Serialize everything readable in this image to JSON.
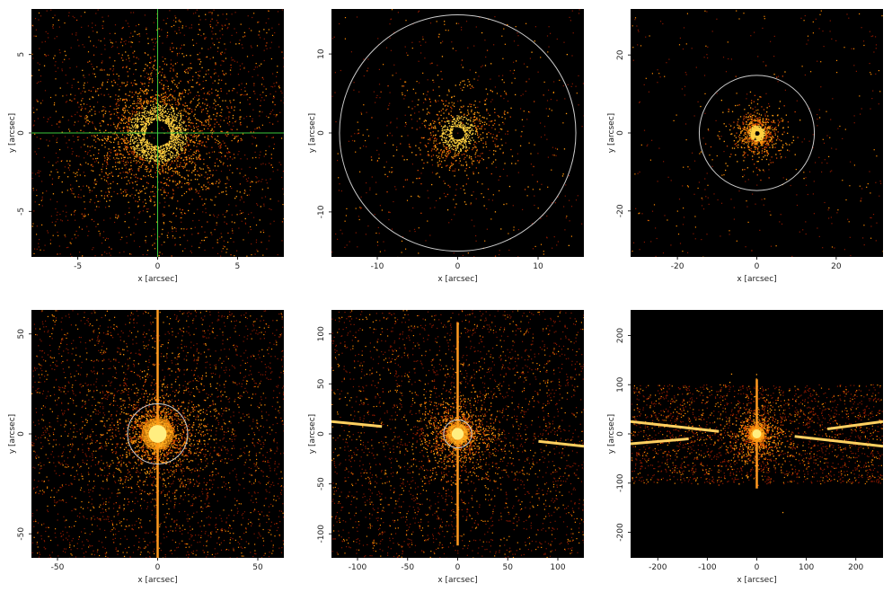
{
  "chart_data": [
    {
      "type": "image",
      "xlabel": "x [arcsec]",
      "ylabel": "y [arcsec]",
      "xlim": [
        -7.9,
        7.9
      ],
      "ylim": [
        -7.9,
        7.9
      ],
      "xticks": [
        -5,
        0,
        5
      ],
      "yticks": [
        -5,
        0,
        5
      ],
      "crosshair": true,
      "crosshair_color": "#3cc83c"
    },
    {
      "type": "image",
      "xlabel": "x [arcsec]",
      "ylabel": "y [arcsec]",
      "xlim": [
        -15.7,
        15.7
      ],
      "ylim": [
        -15.7,
        15.7
      ],
      "xticks": [
        -10,
        0,
        10
      ],
      "yticks": [
        -10,
        0,
        10
      ],
      "circle_radius": 14.7,
      "circle_color": "#cccccc"
    },
    {
      "type": "image",
      "xlabel": "x [arcsec]",
      "ylabel": "y [arcsec]",
      "xlim": [
        -31.8,
        31.8
      ],
      "ylim": [
        -31.8,
        31.8
      ],
      "xticks": [
        -20,
        0,
        20
      ],
      "yticks": [
        -20,
        0,
        20
      ],
      "circle_radius": 14.5,
      "circle_color": "#cccccc"
    },
    {
      "type": "image",
      "xlabel": "x [arcsec]",
      "ylabel": "y [arcsec]",
      "xlim": [
        -63,
        63
      ],
      "ylim": [
        -62,
        62
      ],
      "xticks": [
        -50,
        0,
        50
      ],
      "yticks": [
        -50,
        0,
        50
      ],
      "circle_radius": 15,
      "circle_color": "#cccccc"
    },
    {
      "type": "image",
      "xlabel": "x [arcsec]",
      "ylabel": "y [arcsec]",
      "xlim": [
        -126,
        126
      ],
      "ylim": [
        -124,
        124
      ],
      "xticks": [
        -100,
        -50,
        0,
        50,
        100
      ],
      "yticks": [
        -100,
        -50,
        0,
        50,
        100
      ],
      "circle_radius": 14,
      "circle_color": "#cccccc"
    },
    {
      "type": "image",
      "xlabel": "x [arcsec]",
      "ylabel": "y [arcsec]",
      "xlim": [
        -255,
        255
      ],
      "ylim": [
        -252,
        252
      ],
      "xticks": [
        -200,
        -100,
        0,
        100,
        200
      ],
      "yticks": [
        -200,
        -100,
        0,
        100,
        200
      ]
    }
  ]
}
